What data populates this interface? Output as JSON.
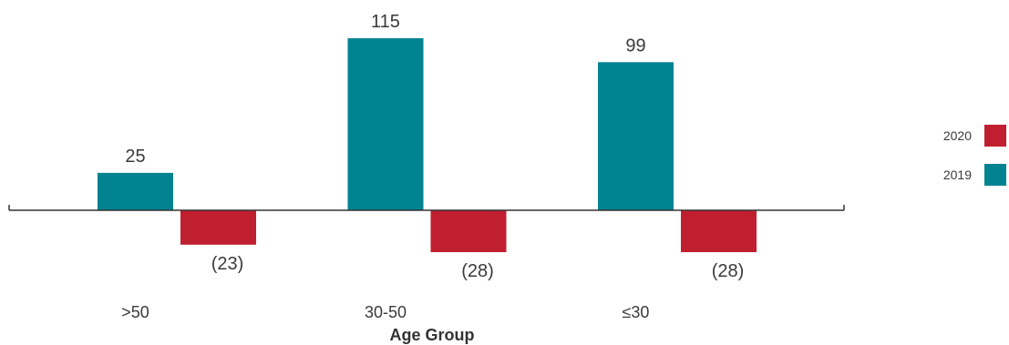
{
  "chart_data": {
    "type": "bar",
    "categories": [
      ">50",
      "30-50",
      "≤30"
    ],
    "series": [
      {
        "name": "2019",
        "values": [
          25,
          115,
          99
        ],
        "color": "#028391",
        "labels": [
          "25",
          "115",
          "99"
        ]
      },
      {
        "name": "2020",
        "values": [
          -23,
          -28,
          -28
        ],
        "color": "#C01F2F",
        "labels": [
          "(23)",
          "(28)",
          "(28)"
        ]
      }
    ],
    "xlabel": "Age Group",
    "ylabel": "",
    "legend": [
      {
        "name": "2020",
        "color": "#C01F2F"
      },
      {
        "name": "2019",
        "color": "#028391"
      }
    ],
    "legend_position": "right",
    "grid": false,
    "ylim": [
      -28,
      115
    ]
  }
}
